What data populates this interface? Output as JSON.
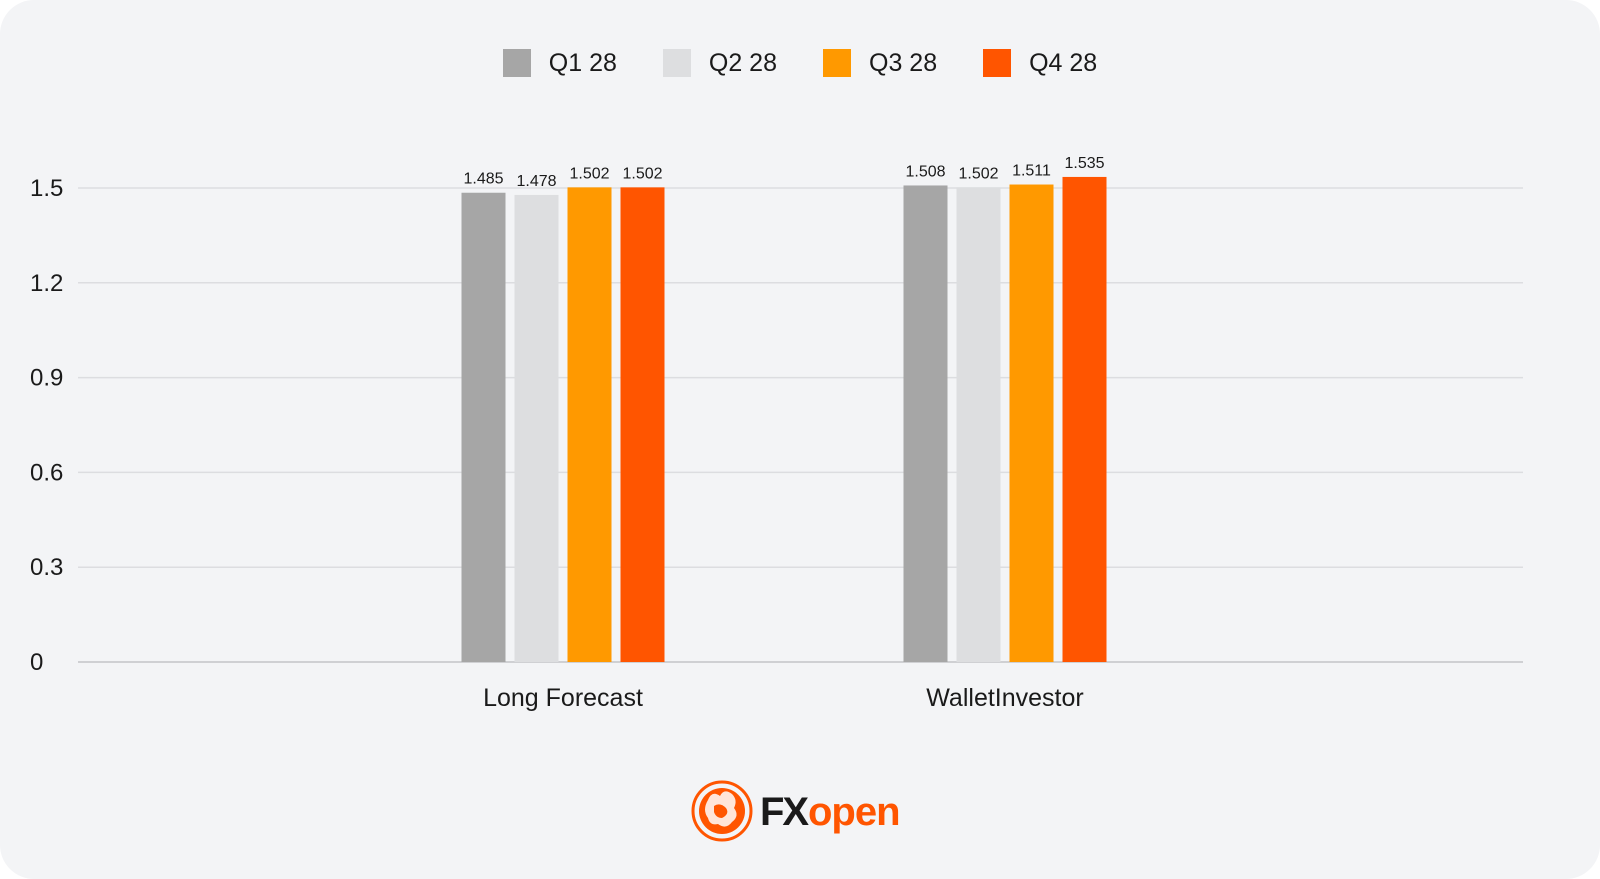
{
  "chart_data": {
    "type": "bar",
    "categories": [
      "Long Forecast",
      "WalletInvestor"
    ],
    "series": [
      {
        "name": "Q1 28",
        "color": "#a6a6a6",
        "values": [
          1.485,
          1.508
        ]
      },
      {
        "name": "Q2 28",
        "color": "#dddee0",
        "values": [
          1.478,
          1.502
        ]
      },
      {
        "name": "Q3 28",
        "color": "#ff9900",
        "values": [
          1.502,
          1.511
        ]
      },
      {
        "name": "Q4 28",
        "color": "#ff5500",
        "values": [
          1.502,
          1.535
        ]
      }
    ],
    "data_labels": [
      [
        "1.485",
        "1.508"
      ],
      [
        "1.478",
        "1.502"
      ],
      [
        "1.502",
        "1.511"
      ],
      [
        "1.502",
        "1.535"
      ]
    ],
    "yticks": [
      "0",
      "0.3",
      "0.6",
      "0.9",
      "1.2",
      "1.5"
    ],
    "ylim": [
      0,
      1.5
    ],
    "grid": true,
    "legend_position": "top-center",
    "title": "",
    "xlabel": "",
    "ylabel": ""
  },
  "logo": {
    "text_fx": "FX",
    "text_open": "open",
    "brand_color": "#ff5500",
    "icon": "bull-bear-logo-icon"
  }
}
